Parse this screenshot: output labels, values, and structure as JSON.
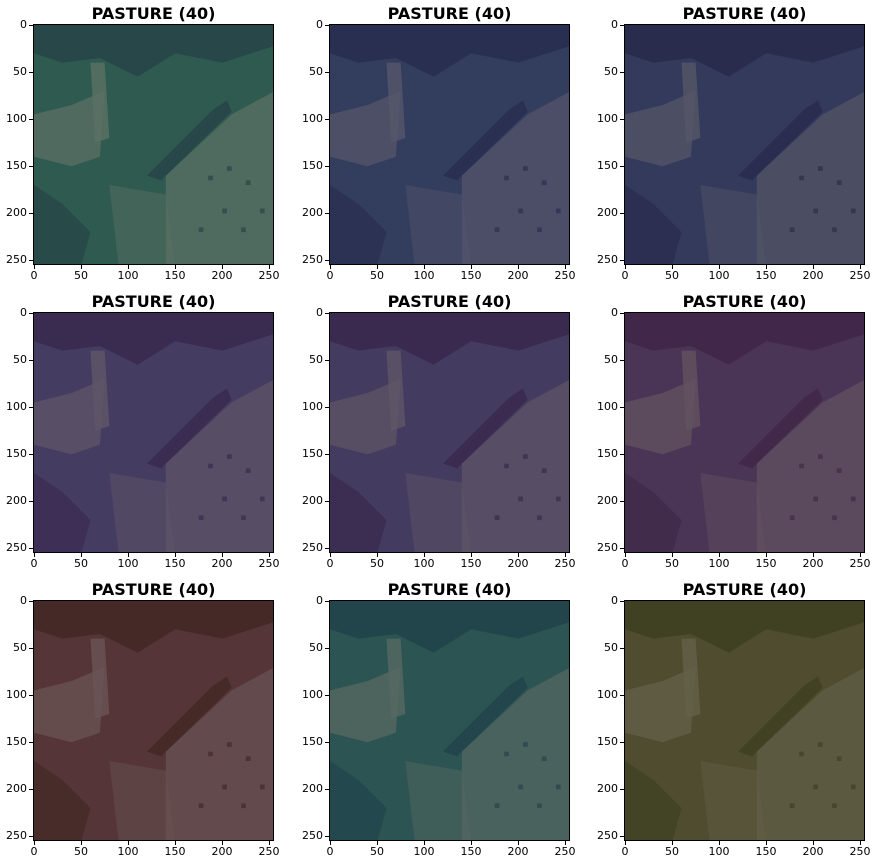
{
  "panels": [
    {
      "title": "PASTURE (40)",
      "tint": "#2f5a50",
      "dark": "#233e44",
      "light": "#5d7064"
    },
    {
      "title": "PASTURE (40)",
      "tint": "#333d5e",
      "dark": "#252a4c",
      "light": "#55566a"
    },
    {
      "title": "PASTURE (40)",
      "tint": "#333a5c",
      "dark": "#262748",
      "light": "#555667"
    },
    {
      "title": "PASTURE (40)",
      "tint": "#453c62",
      "dark": "#36244a",
      "light": "#5f5668"
    },
    {
      "title": "PASTURE (40)",
      "tint": "#443b60",
      "dark": "#372448",
      "light": "#5f5666"
    },
    {
      "title": "PASTURE (40)",
      "tint": "#4a3557",
      "dark": "#3d2444",
      "light": "#63525f"
    },
    {
      "title": "PASTURE (40)",
      "tint": "#553537",
      "dark": "#3e2520",
      "light": "#6a5455"
    },
    {
      "title": "PASTURE (40)",
      "tint": "#2c5453",
      "dark": "#1e3e48",
      "light": "#576862"
    },
    {
      "title": "PASTURE (40)",
      "tint": "#4f4c30",
      "dark": "#3a3d1e",
      "light": "#636048"
    }
  ],
  "x_ticks": [
    "0",
    "50",
    "100",
    "150",
    "200",
    "250"
  ],
  "y_ticks": [
    "0",
    "50",
    "100",
    "150",
    "200",
    "250"
  ],
  "image_extent": [
    0,
    256
  ]
}
